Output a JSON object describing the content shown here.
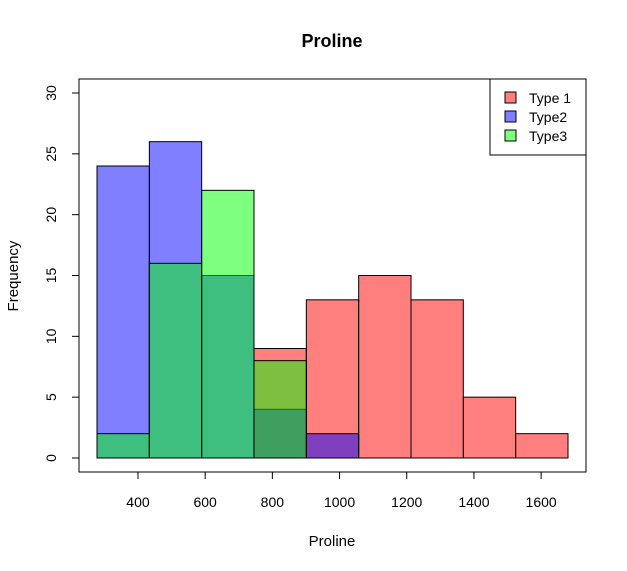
{
  "chart_data": {
    "type": "bar",
    "title": "Proline",
    "xlabel": "Proline",
    "ylabel": "Frequency",
    "xlim": [
      278,
      1680
    ],
    "ylim": [
      0,
      30
    ],
    "xticks": [
      400,
      600,
      800,
      1000,
      1200,
      1400,
      1600
    ],
    "yticks": [
      0,
      5,
      10,
      15,
      20,
      25,
      30
    ],
    "bin_edges": [
      278,
      433.8,
      589.6,
      745.3,
      901.1,
      1056.9,
      1212.7,
      1368.4,
      1524.2,
      1680
    ],
    "legend": {
      "position": "top-right"
    },
    "series": [
      {
        "name": "Type 1",
        "color": "#ff000080",
        "values": [
          0,
          0,
          0,
          9,
          13,
          15,
          13,
          5,
          2
        ]
      },
      {
        "name": "Type2",
        "color": "#0000ff80",
        "values": [
          24,
          26,
          15,
          4,
          2,
          0,
          0,
          0,
          0
        ]
      },
      {
        "name": "Type3",
        "color": "#00ff0080",
        "values": [
          2,
          16,
          22,
          8,
          0,
          0,
          0,
          0,
          0
        ]
      }
    ]
  }
}
